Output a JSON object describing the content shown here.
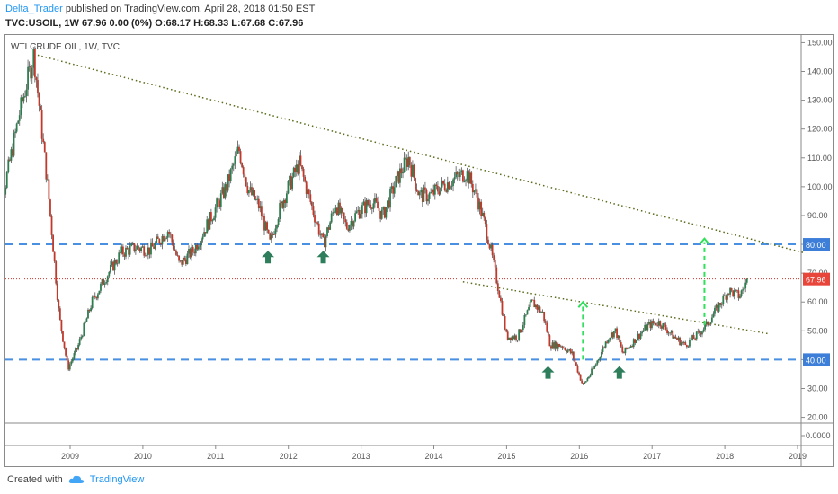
{
  "header": {
    "user": "Delta_Trader",
    "published": "published on TradingView.com, April 28, 2018 01:50 EST",
    "symbol_line": "TVC:USOIL, 1W  67.96 0.00 (0%) O:68.17 H:68.33 L:67.68 C:67.96"
  },
  "footer": {
    "created_with": "Created with",
    "brand": "TradingView"
  },
  "chart_data": {
    "type": "candlestick",
    "title": "WTI CRUDE OIL, 1W, TVC",
    "x_ticks": [
      "2009",
      "2010",
      "2011",
      "2012",
      "2013",
      "2014",
      "2015",
      "2016",
      "2017",
      "2018",
      "2019"
    ],
    "y_ticks": [
      20,
      30,
      40,
      50,
      60,
      70,
      80,
      90,
      100,
      110,
      120,
      130,
      140,
      150
    ],
    "ylim": [
      18,
      152
    ],
    "sub_axis_label": "0.0000",
    "last_price": 67.96,
    "last_price_label": "67.96",
    "horizontal_levels": [
      {
        "value": 80,
        "label": "80.00",
        "color": "#4a90e2"
      },
      {
        "value": 40,
        "label": "40.00",
        "color": "#4a90e2"
      }
    ],
    "trendlines": [
      {
        "from": [
          2008.5,
          146
        ],
        "to": [
          2019.1,
          77
        ],
        "color": "#5a6e1e"
      },
      {
        "from": [
          2014.4,
          67
        ],
        "to": [
          2018.6,
          49
        ],
        "color": "#5a6e1e"
      }
    ],
    "price_path": [
      [
        2007.92,
        88
      ],
      [
        2008.1,
        100
      ],
      [
        2008.3,
        125
      ],
      [
        2008.5,
        146
      ],
      [
        2008.7,
        98
      ],
      [
        2008.85,
        55
      ],
      [
        2008.97,
        37
      ],
      [
        2009.1,
        44
      ],
      [
        2009.3,
        60
      ],
      [
        2009.5,
        69
      ],
      [
        2009.7,
        77
      ],
      [
        2009.9,
        79
      ],
      [
        2010.1,
        78
      ],
      [
        2010.35,
        85
      ],
      [
        2010.5,
        73
      ],
      [
        2010.7,
        78
      ],
      [
        2010.95,
        90
      ],
      [
        2011.15,
        100
      ],
      [
        2011.32,
        113
      ],
      [
        2011.45,
        99
      ],
      [
        2011.6,
        93
      ],
      [
        2011.75,
        80
      ],
      [
        2011.85,
        90
      ],
      [
        2012.0,
        100
      ],
      [
        2012.15,
        108
      ],
      [
        2012.3,
        95
      ],
      [
        2012.48,
        80
      ],
      [
        2012.65,
        94
      ],
      [
        2012.8,
        86
      ],
      [
        2012.95,
        91
      ],
      [
        2013.15,
        95
      ],
      [
        2013.3,
        90
      ],
      [
        2013.5,
        103
      ],
      [
        2013.65,
        110
      ],
      [
        2013.8,
        97
      ],
      [
        2013.95,
        97
      ],
      [
        2014.1,
        100
      ],
      [
        2014.3,
        103
      ],
      [
        2014.45,
        105
      ],
      [
        2014.6,
        96
      ],
      [
        2014.75,
        82
      ],
      [
        2014.9,
        63
      ],
      [
        2015.0,
        48
      ],
      [
        2015.15,
        48
      ],
      [
        2015.35,
        60
      ],
      [
        2015.5,
        56
      ],
      [
        2015.6,
        45
      ],
      [
        2015.75,
        45
      ],
      [
        2015.9,
        42
      ],
      [
        2016.05,
        31
      ],
      [
        2016.2,
        37
      ],
      [
        2016.4,
        48
      ],
      [
        2016.5,
        50
      ],
      [
        2016.6,
        42
      ],
      [
        2016.8,
        48
      ],
      [
        2016.95,
        52
      ],
      [
        2017.1,
        53
      ],
      [
        2017.3,
        48
      ],
      [
        2017.45,
        45
      ],
      [
        2017.6,
        48
      ],
      [
        2017.75,
        52
      ],
      [
        2017.9,
        58
      ],
      [
        2018.05,
        64
      ],
      [
        2018.2,
        62
      ],
      [
        2018.32,
        68
      ]
    ],
    "arrows": [
      {
        "x": 2011.72,
        "y": 74,
        "dir": "up",
        "style": "solid"
      },
      {
        "x": 2012.48,
        "y": 74,
        "dir": "up",
        "style": "solid"
      },
      {
        "x": 2015.57,
        "y": 34,
        "dir": "up",
        "style": "solid"
      },
      {
        "x": 2016.55,
        "y": 34,
        "dir": "up",
        "style": "solid"
      },
      {
        "x": 2016.05,
        "y": 40,
        "y2": 60,
        "dir": "up",
        "style": "dashed"
      },
      {
        "x": 2017.72,
        "y": 52,
        "y2": 82,
        "dir": "up",
        "style": "dashed"
      }
    ],
    "colors": {
      "up": "#2e7d4f",
      "down": "#c0392b",
      "wick": "#555555",
      "price_line": "#d0302a",
      "price_label_bg": "#e8463b",
      "level_label_bg": "#3d7fd8",
      "arrow": "#2e7d5b",
      "dashed_arrow": "#2ee05a"
    }
  }
}
